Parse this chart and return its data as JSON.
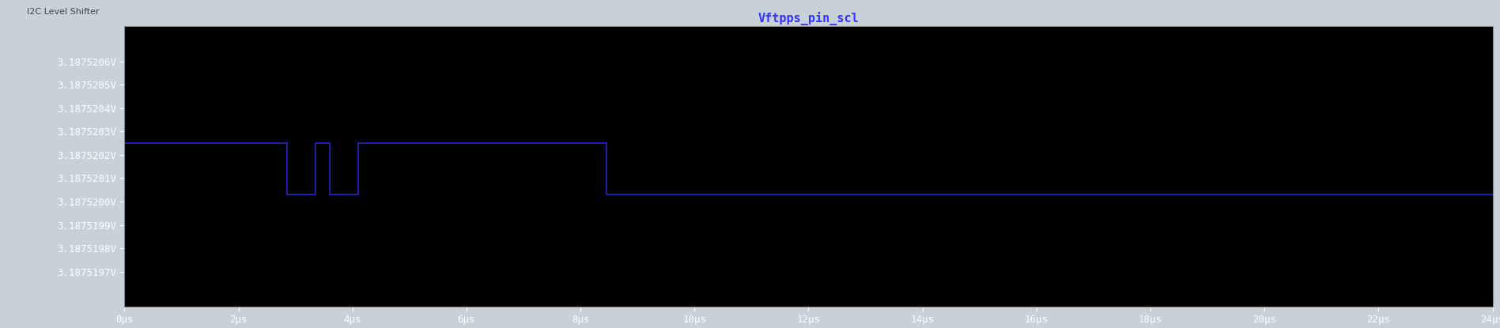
{
  "title": "Vftpps_pin_scl",
  "title_color": "#3333ff",
  "bg_color": "#000000",
  "outer_bg_color": "#c8d0d8",
  "line_color": "#2222bb",
  "line_width": 1.3,
  "xlim": [
    0,
    2.4e-05
  ],
  "ylim": [
    3.18751955,
    3.18752075
  ],
  "x_ticks": [
    0,
    2e-06,
    4e-06,
    6e-06,
    8e-06,
    1e-05,
    1.2e-05,
    1.4e-05,
    1.6e-05,
    1.8e-05,
    2e-05,
    2.2e-05,
    2.4e-05
  ],
  "x_tick_labels": [
    "0μs",
    "2μs",
    "4μs",
    "6μs",
    "8μs",
    "10μs",
    "12μs",
    "14μs",
    "16μs",
    "18μs",
    "20μs",
    "22μs",
    "24μs"
  ],
  "y_ticks": [
    3.1875197,
    3.1875198,
    3.1875199,
    3.18752,
    3.1875201,
    3.1875202,
    3.1875203,
    3.1875204,
    3.1875205,
    3.1875206
  ],
  "y_tick_labels": [
    "3.1875197V",
    "3.1875198V",
    "3.1875199V",
    "3.1875200V",
    "3.1875201V",
    "3.1875202V",
    "3.1875203V",
    "3.1875204V",
    "3.1875205V",
    "3.1875206V"
  ],
  "window_title": "I2C Level Shifter",
  "high_v": 3.18752025,
  "low_v": 3.18752003,
  "waveform_x": [
    0,
    2.85e-06,
    2.85e-06,
    3.35e-06,
    3.35e-06,
    3.6e-06,
    3.6e-06,
    4.1e-06,
    4.1e-06,
    8.45e-06,
    8.45e-06,
    9.05e-06,
    9.05e-06,
    2.4e-05
  ],
  "waveform_y": [
    3.18752025,
    3.18752025,
    3.18752003,
    3.18752003,
    3.18752025,
    3.18752025,
    3.18752003,
    3.18752003,
    3.18752025,
    3.18752025,
    3.18752003,
    3.18752003,
    3.18752003,
    3.18752003
  ]
}
